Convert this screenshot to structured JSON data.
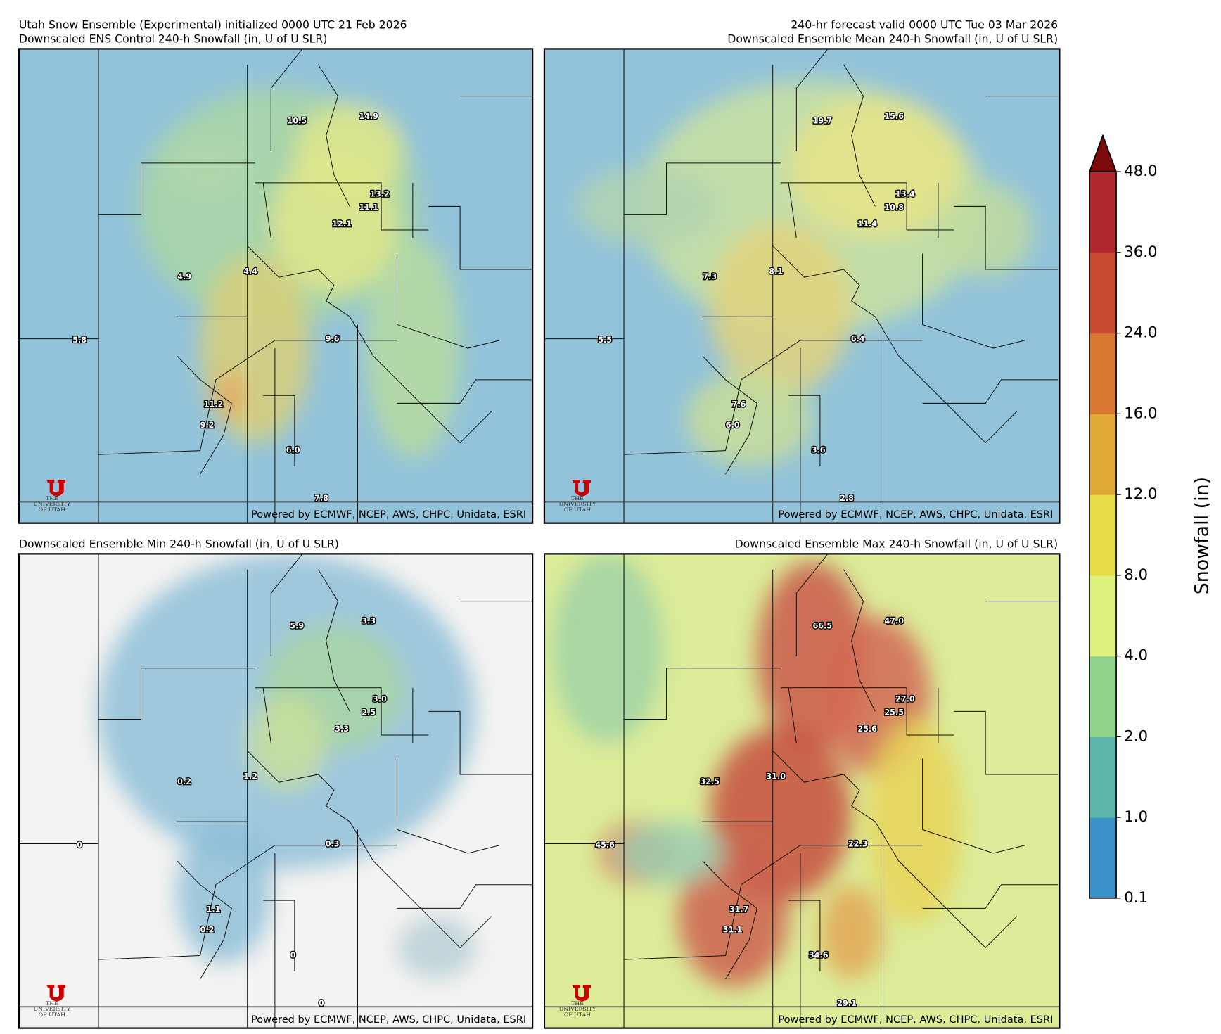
{
  "header": {
    "left": "Utah Snow Ensemble (Experimental) initialized 0000 UTC 21 Feb 2026",
    "right": "240-hr forecast valid 0000 UTC Tue 03 Mar 2026"
  },
  "panels": [
    {
      "title": "Downscaled ENS Control 240-h Snowfall (in, U of U SLR)",
      "labels": [
        "10.5",
        "14.9",
        "13.2",
        "11.1",
        "12.1",
        "4.9",
        "4.4",
        "9.6",
        "5.8",
        "11.2",
        "9.2",
        "6.0",
        "7.8"
      ],
      "credit": "Powered by ECMWF, NCEP, AWS, CHPC, Unidata, ESRI"
    },
    {
      "title": "Downscaled Ensemble Mean 240-h Snowfall (in, U of U SLR)",
      "labels": [
        "19.7",
        "15.6",
        "13.4",
        "10.8",
        "11.4",
        "7.3",
        "8.1",
        "6.4",
        "5.5",
        "7.6",
        "6.0",
        "3.6",
        "2.8"
      ],
      "credit": "Powered by ECMWF, NCEP, AWS, CHPC, Unidata, ESRI"
    },
    {
      "title": "Downscaled Ensemble Min 240-h Snowfall (in, U of U SLR)",
      "labels": [
        "5.9",
        "3.3",
        "3.0",
        "2.5",
        "3.3",
        "0.2",
        "1.2",
        "0.3",
        "0",
        "1.1",
        "0.2",
        "0",
        "0"
      ],
      "credit": "Powered by ECMWF, NCEP, AWS, CHPC, Unidata, ESRI"
    },
    {
      "title": "Downscaled Ensemble Max 240-h Snowfall (in, U of U SLR)",
      "labels": [
        "66.5",
        "47.0",
        "27.0",
        "25.5",
        "25.6",
        "32.5",
        "31.0",
        "22.3",
        "45.6",
        "31.7",
        "31.1",
        "34.6",
        "29.1"
      ],
      "credit": "Powered by ECMWF, NCEP, AWS, CHPC, Unidata, ESRI"
    }
  ],
  "logo": {
    "line1": "THE",
    "line2": "UNIVERSITY",
    "line3": "OF UTAH"
  },
  "colorbar": {
    "label": "Snowfall (in)",
    "ticks": [
      "0.1",
      "1.0",
      "2.0",
      "4.0",
      "8.0",
      "12.0",
      "16.0",
      "24.0",
      "36.0",
      "48.0"
    ],
    "colors": [
      "#3b92c8",
      "#5db4aa",
      "#91d58d",
      "#dcf07b",
      "#e8dc46",
      "#e0a935",
      "#d9762f",
      "#c84a31",
      "#b1282e"
    ],
    "extend_color": "#7d0b0b"
  }
}
